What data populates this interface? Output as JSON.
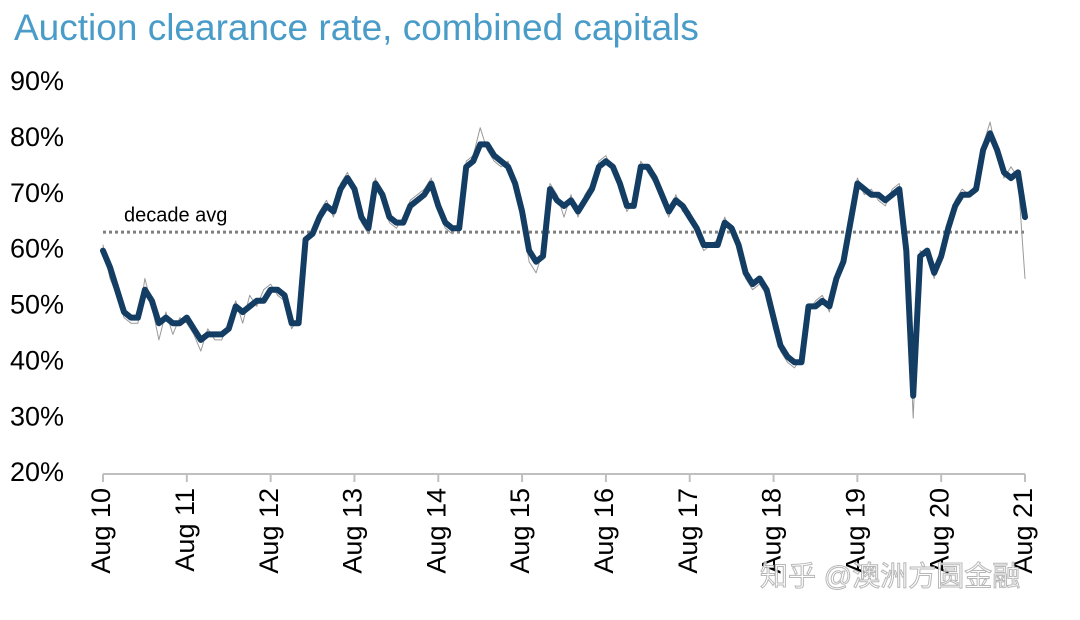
{
  "chart_data": {
    "type": "line",
    "title": "Auction clearance rate, combined capitals",
    "watermark": "知乎 @澳洲方圆金融",
    "reference_line": {
      "label": "decade avg",
      "value": 63.3,
      "color": "#7f7f7f"
    },
    "x": [
      "2010-08",
      "2010-09",
      "2010-10",
      "2010-11",
      "2010-12",
      "2011-01",
      "2011-02",
      "2011-03",
      "2011-04",
      "2011-05",
      "2011-06",
      "2011-07",
      "2011-08",
      "2011-09",
      "2011-10",
      "2011-11",
      "2011-12",
      "2012-01",
      "2012-02",
      "2012-03",
      "2012-04",
      "2012-05",
      "2012-06",
      "2012-07",
      "2012-08",
      "2012-09",
      "2012-10",
      "2012-11",
      "2012-12",
      "2013-01",
      "2013-02",
      "2013-03",
      "2013-04",
      "2013-05",
      "2013-06",
      "2013-07",
      "2013-08",
      "2013-09",
      "2013-10",
      "2013-11",
      "2013-12",
      "2014-01",
      "2014-02",
      "2014-03",
      "2014-04",
      "2014-05",
      "2014-06",
      "2014-07",
      "2014-08",
      "2014-09",
      "2014-10",
      "2014-11",
      "2014-12",
      "2015-01",
      "2015-02",
      "2015-03",
      "2015-04",
      "2015-05",
      "2015-06",
      "2015-07",
      "2015-08",
      "2015-09",
      "2015-10",
      "2015-11",
      "2015-12",
      "2016-01",
      "2016-02",
      "2016-03",
      "2016-04",
      "2016-05",
      "2016-06",
      "2016-07",
      "2016-08",
      "2016-09",
      "2016-10",
      "2016-11",
      "2016-12",
      "2017-01",
      "2017-02",
      "2017-03",
      "2017-04",
      "2017-05",
      "2017-06",
      "2017-07",
      "2017-08",
      "2017-09",
      "2017-10",
      "2017-11",
      "2017-12",
      "2018-01",
      "2018-02",
      "2018-03",
      "2018-04",
      "2018-05",
      "2018-06",
      "2018-07",
      "2018-08",
      "2018-09",
      "2018-10",
      "2018-11",
      "2018-12",
      "2019-01",
      "2019-02",
      "2019-03",
      "2019-04",
      "2019-05",
      "2019-06",
      "2019-07",
      "2019-08",
      "2019-09",
      "2019-10",
      "2019-11",
      "2019-12",
      "2020-01",
      "2020-02",
      "2020-03",
      "2020-04",
      "2020-05",
      "2020-06",
      "2020-07",
      "2020-08",
      "2020-09",
      "2020-10",
      "2020-11",
      "2020-12",
      "2021-01",
      "2021-02",
      "2021-03",
      "2021-04",
      "2021-05",
      "2021-06",
      "2021-07",
      "2021-08"
    ],
    "series": [
      {
        "color": "#9a9a9a",
        "width": 1,
        "values": [
          61,
          55,
          52,
          48,
          47,
          47,
          55,
          50,
          44,
          49,
          45,
          48,
          47,
          45,
          42,
          46,
          44,
          44,
          47,
          51,
          47,
          52,
          50,
          53,
          54,
          52,
          51,
          46,
          48,
          61,
          64,
          67,
          69,
          66,
          72,
          74,
          70,
          65,
          63,
          73,
          69,
          65,
          64,
          66,
          69,
          70,
          71,
          73,
          67,
          64,
          63,
          65,
          76,
          77,
          82,
          78,
          76,
          75,
          76,
          71,
          66,
          58,
          56,
          60,
          72,
          70,
          66,
          70,
          66,
          70,
          72,
          76,
          77,
          74,
          71,
          67,
          69,
          76,
          74,
          72,
          69,
          66,
          70,
          67,
          67,
          63,
          60,
          61,
          62,
          66,
          63,
          60,
          55,
          53,
          54,
          52,
          46,
          42,
          40,
          39,
          41,
          49,
          51,
          52,
          49,
          56,
          59,
          66,
          73,
          70,
          71,
          69,
          68,
          71,
          72,
          58,
          30,
          60,
          59,
          55,
          60,
          65,
          69,
          71,
          70,
          72,
          79,
          83,
          77,
          73,
          75,
          73,
          55
        ]
      },
      {
        "color": "#143d63",
        "width": 6,
        "values": [
          60,
          57,
          53,
          49,
          48,
          48,
          53,
          51,
          47,
          48,
          47,
          47,
          48,
          46,
          44,
          45,
          45,
          45,
          46,
          50,
          49,
          50,
          51,
          51,
          53,
          53,
          52,
          47,
          47,
          62,
          63,
          66,
          68,
          67,
          71,
          73,
          71,
          66,
          64,
          72,
          70,
          66,
          65,
          65,
          68,
          69,
          70,
          72,
          68,
          65,
          64,
          64,
          75,
          76,
          79,
          79,
          77,
          76,
          75,
          72,
          67,
          60,
          58,
          59,
          71,
          69,
          68,
          69,
          67,
          69,
          71,
          75,
          76,
          75,
          72,
          68,
          68,
          75,
          75,
          73,
          70,
          67,
          69,
          68,
          66,
          64,
          61,
          61,
          61,
          65,
          64,
          61,
          56,
          54,
          55,
          53,
          48,
          43,
          41,
          40,
          40,
          50,
          50,
          51,
          50,
          55,
          58,
          65,
          72,
          71,
          70,
          70,
          69,
          70,
          71,
          60,
          34,
          59,
          60,
          56,
          59,
          64,
          68,
          70,
          70,
          71,
          78,
          81,
          78,
          74,
          73,
          74,
          66
        ]
      }
    ],
    "xlim": [
      "2010-08",
      "2021-08"
    ],
    "xticks": [
      {
        "value": "2010-08",
        "label": "Aug 10"
      },
      {
        "value": "2011-08",
        "label": "Aug 11"
      },
      {
        "value": "2012-08",
        "label": "Aug 12"
      },
      {
        "value": "2013-08",
        "label": "Aug 13"
      },
      {
        "value": "2014-08",
        "label": "Aug 14"
      },
      {
        "value": "2015-08",
        "label": "Aug 15"
      },
      {
        "value": "2016-08",
        "label": "Aug 16"
      },
      {
        "value": "2017-08",
        "label": "Aug 17"
      },
      {
        "value": "2018-08",
        "label": "Aug 18"
      },
      {
        "value": "2019-08",
        "label": "Aug 19"
      },
      {
        "value": "2020-08",
        "label": "Aug 20"
      },
      {
        "value": "2021-08",
        "label": "Aug 21"
      }
    ],
    "ylim": [
      20,
      90
    ],
    "yticks": [
      {
        "value": 20,
        "label": "20%"
      },
      {
        "value": 30,
        "label": "30%"
      },
      {
        "value": 40,
        "label": "40%"
      },
      {
        "value": 50,
        "label": "50%"
      },
      {
        "value": 60,
        "label": "60%"
      },
      {
        "value": 70,
        "label": "70%"
      },
      {
        "value": 80,
        "label": "80%"
      },
      {
        "value": 90,
        "label": "90%"
      }
    ],
    "grid": false
  }
}
